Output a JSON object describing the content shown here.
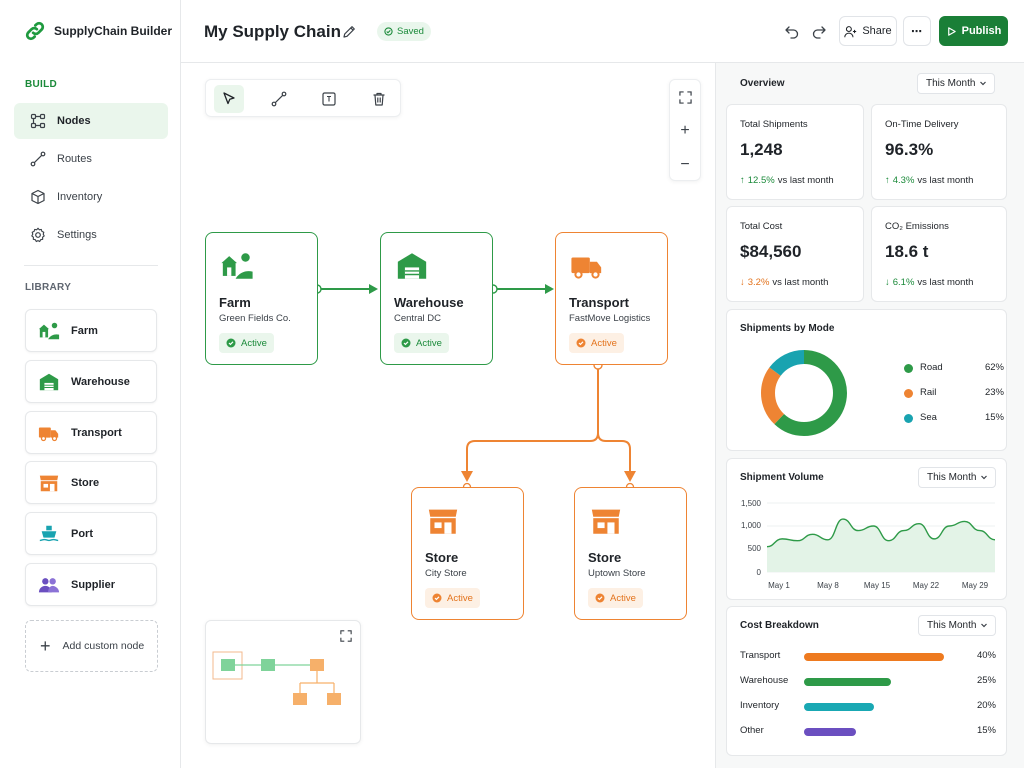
{
  "app": {
    "name": "SupplyChain Builder"
  },
  "sidebar": {
    "build_label": "BUILD",
    "nav": [
      {
        "label": "Nodes",
        "icon": "nodes-icon"
      },
      {
        "label": "Routes",
        "icon": "routes-icon"
      },
      {
        "label": "Inventory",
        "icon": "box-icon"
      },
      {
        "label": "Settings",
        "icon": "gear-icon"
      }
    ],
    "library_label": "LIBRARY",
    "library": [
      {
        "label": "Farm",
        "icon": "farm-icon"
      },
      {
        "label": "Warehouse",
        "icon": "warehouse-icon"
      },
      {
        "label": "Transport",
        "icon": "truck-icon"
      },
      {
        "label": "Store",
        "icon": "store-icon"
      },
      {
        "label": "Port",
        "icon": "ship-icon"
      },
      {
        "label": "Supplier",
        "icon": "supplier-icon"
      }
    ],
    "add_label": "Add custom node"
  },
  "header": {
    "title": "My Supply Chain",
    "status": "Saved",
    "share": "Share",
    "publish": "Publish"
  },
  "canvas": {
    "nodes": [
      {
        "title": "Farm",
        "subtitle": "Green Fields Co.",
        "status": "Active"
      },
      {
        "title": "Warehouse",
        "subtitle": "Central DC",
        "status": "Active"
      },
      {
        "title": "Transport",
        "subtitle": "FastMove Logistics",
        "status": "Active"
      },
      {
        "title": "Store",
        "subtitle": "City Store",
        "status": "Active"
      },
      {
        "title": "Store",
        "subtitle": "Uptown Store",
        "status": "Active"
      }
    ]
  },
  "overview": {
    "title": "Overview",
    "period": "This Month",
    "kpis": [
      {
        "label": "Total Shipments",
        "value": "1,248",
        "change": "12.5%",
        "suffix": "vs last month",
        "direction": "up"
      },
      {
        "label": "On-Time Delivery",
        "value": "96.3%",
        "change": "4.3%",
        "suffix": "vs last month",
        "direction": "up"
      },
      {
        "label": "Total Cost",
        "value": "$84,560",
        "change": "3.2%",
        "suffix": "vs last month",
        "direction": "up-cost"
      },
      {
        "label": "CO₂ Emissions",
        "value": "18.6 t",
        "change": "6.1%",
        "suffix": "vs last month",
        "direction": "down"
      }
    ]
  },
  "mode": {
    "title": "Shipments by Mode",
    "items": [
      {
        "label": "Road",
        "value": "62%",
        "pct": 62,
        "color": "#2e9a48"
      },
      {
        "label": "Rail",
        "value": "23%",
        "pct": 23,
        "color": "#ee8433"
      },
      {
        "label": "Sea",
        "value": "15%",
        "pct": 15,
        "color": "#19a3b0"
      }
    ]
  },
  "volume": {
    "title": "Shipment Volume",
    "period": "This Month",
    "y_ticks": [
      "1,500",
      "1,000",
      "500",
      "0"
    ],
    "x_ticks": [
      "May 1",
      "May 8",
      "May 15",
      "May 22",
      "May 29"
    ]
  },
  "cost": {
    "title": "Cost Breakdown",
    "period": "This Month",
    "items": [
      {
        "label": "Transport",
        "value": "40%",
        "pct": 40,
        "color": "#ee7a1f"
      },
      {
        "label": "Warehouse",
        "value": "25%",
        "pct": 25,
        "color": "#2e9a48"
      },
      {
        "label": "Inventory",
        "value": "20%",
        "pct": 20,
        "color": "#19a8b3"
      },
      {
        "label": "Other",
        "value": "15%",
        "pct": 15,
        "color": "#6b4fc0"
      }
    ]
  },
  "chart_data": {
    "type": "area",
    "x": [
      "May 1",
      "May 3",
      "May 5",
      "May 7",
      "May 9",
      "May 11",
      "May 13",
      "May 15",
      "May 17",
      "May 19",
      "May 21",
      "May 23",
      "May 25",
      "May 27",
      "May 29",
      "May 31"
    ],
    "values": [
      550,
      720,
      680,
      820,
      700,
      1150,
      900,
      1000,
      680,
      900,
      1050,
      720,
      1000,
      1100,
      900,
      700
    ],
    "ylim": [
      0,
      1500
    ],
    "xlabel": "",
    "ylabel": ""
  }
}
